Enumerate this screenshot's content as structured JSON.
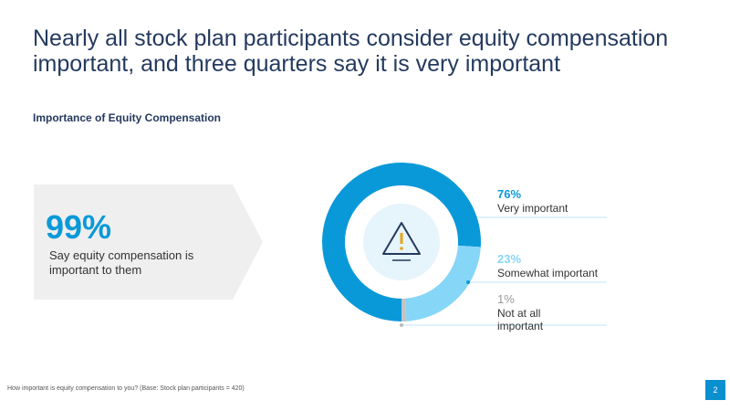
{
  "title": "Nearly all stock plan participants consider equity compensation important, and three quarters say it is very important",
  "callout": {
    "value": "99%",
    "text": "Say equity compensation is important to them"
  },
  "chart_data": {
    "type": "donut",
    "title": "Importance of Equity Compensation",
    "categories": [
      "Very important",
      "Somewhat important",
      "Not at all important"
    ],
    "values": [
      76,
      23,
      1
    ],
    "value_labels": [
      "76%",
      "23%",
      "1%"
    ],
    "colors": [
      "#0a99d8",
      "#86d6f7",
      "#c4c4c4"
    ]
  },
  "footnote": "How important is equity compensation to you? (Base: Stock plan participants = 420)",
  "page_number": "2"
}
